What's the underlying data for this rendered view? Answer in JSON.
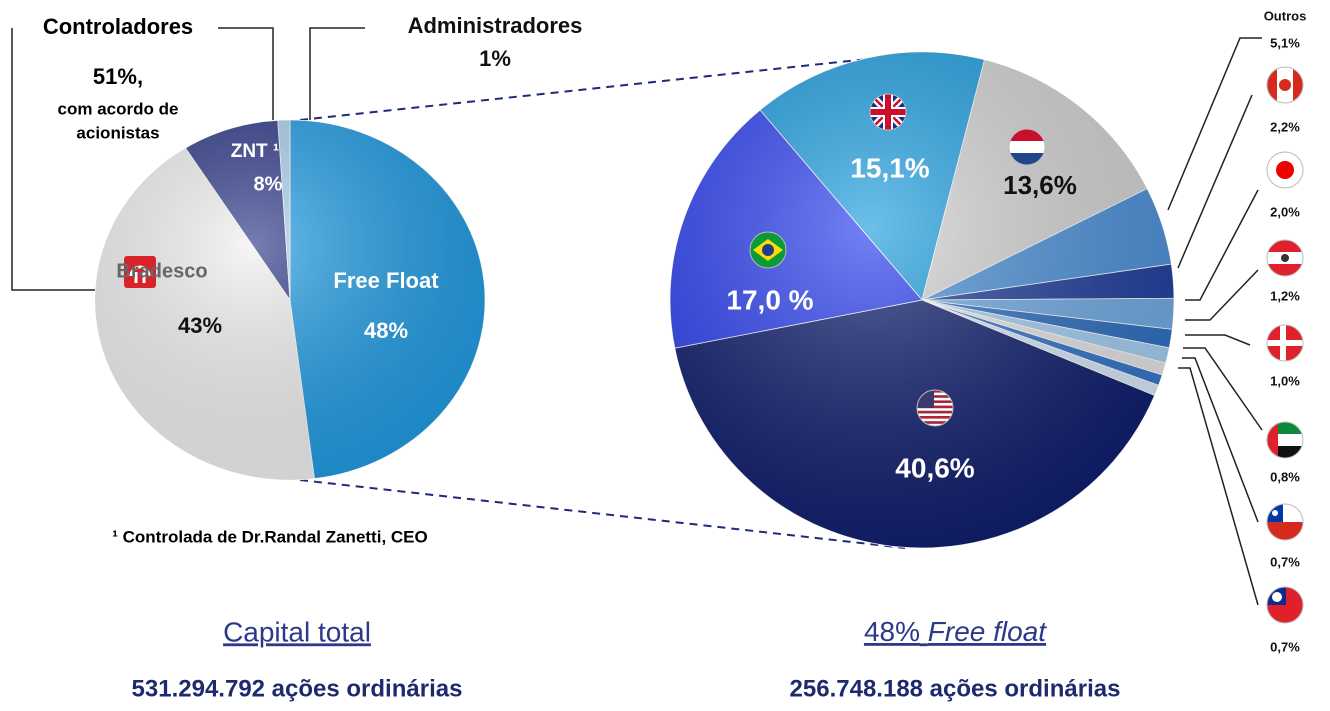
{
  "chart_data": [
    {
      "type": "pie",
      "categories": [
        "Free Float",
        "Bradesco",
        "ZNT ¹",
        "Administradores"
      ],
      "values": [
        48,
        43,
        8,
        1
      ],
      "value_labels": [
        "48%",
        "43%",
        "8%",
        "1%"
      ],
      "colors": [
        "#1e9be3",
        "#f1f1f1",
        "#2c3888",
        "#a9cfee"
      ]
    },
    {
      "type": "pie",
      "categories": [
        null,
        null,
        "Outros",
        null,
        null,
        null,
        null,
        null,
        null,
        null,
        null,
        null
      ],
      "values": [
        15.1,
        13.6,
        5.1,
        2.2,
        2.0,
        1.2,
        1.0,
        0.8,
        0.7,
        0.7,
        40.6,
        17.0
      ],
      "value_labels": [
        "15,1%",
        "13,6%",
        "5,1%",
        "2,2%",
        "2,0%",
        "1,2%",
        "1,0%",
        "0,8%",
        "0,7%",
        "0,7%",
        "40,6%",
        "17,0 %"
      ],
      "colors": [
        "#1c9ddf",
        "#d3d3d3",
        "#4b8fd8",
        "#1e3c9c",
        "#6ea9e2",
        "#2c6dbf",
        "#a3cdf2",
        "#e4e4e4",
        "#3173c9",
        "#d6e7f8",
        "#0d1b6c",
        "#2b3ff0"
      ]
    }
  ],
  "controladores": {
    "title": "Controladores",
    "share": "51%,",
    "note_lines": [
      "com acordo de",
      "acionistas"
    ]
  },
  "footnote": "¹ Controlada de Dr.Randal Zanetti, CEO",
  "left_caption": {
    "title": "Capital total",
    "shares": "531.294.792 ações ordinárias"
  },
  "right_caption": {
    "title_prefix": "48%",
    "title_emph": "Free float",
    "shares": "256.748.188 ações ordinárias"
  }
}
